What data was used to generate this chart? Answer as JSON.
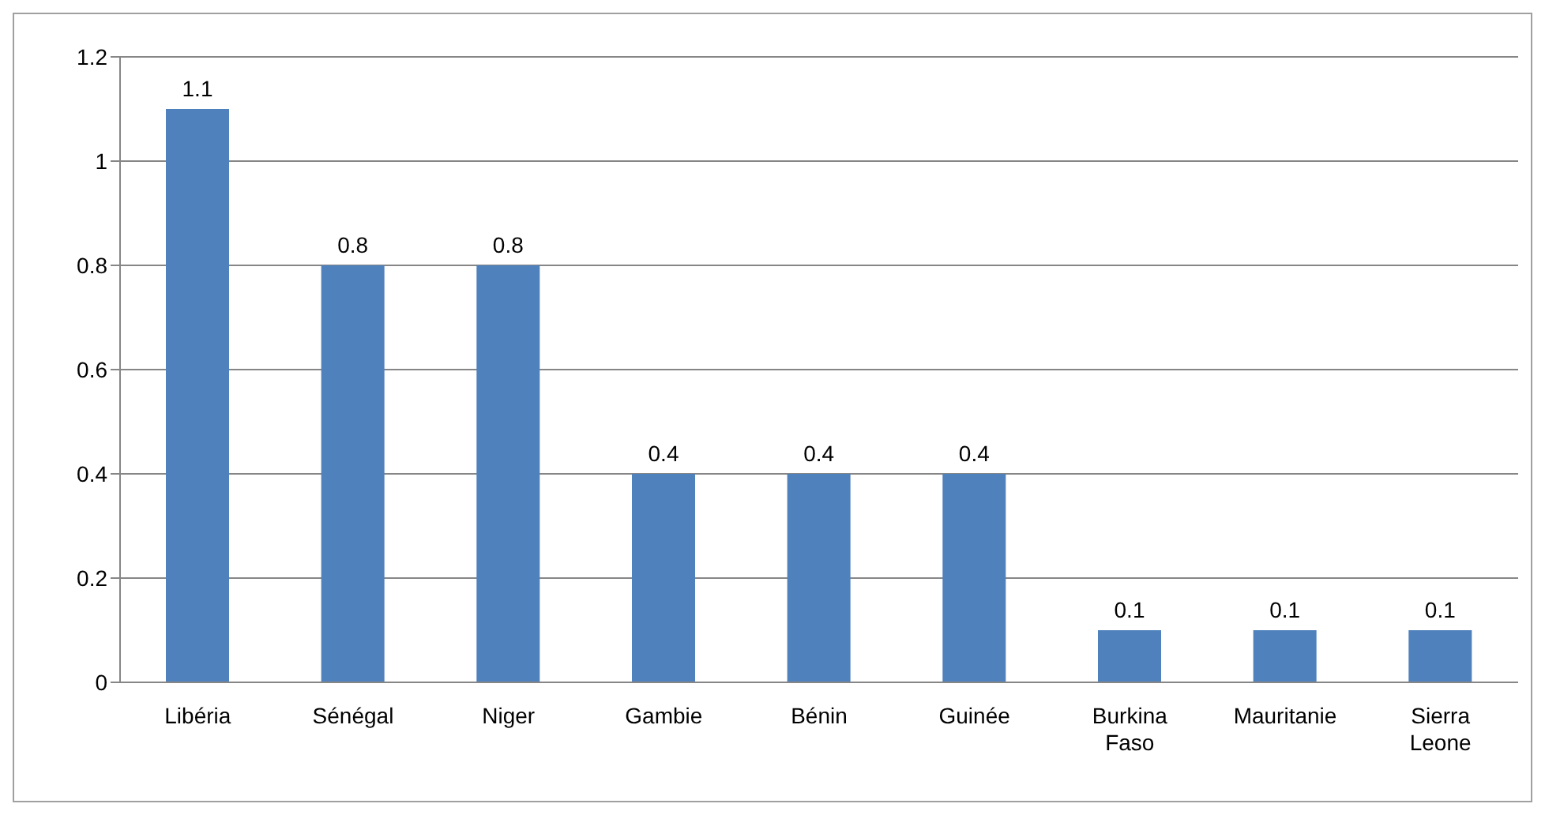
{
  "chart_data": {
    "type": "bar",
    "categories": [
      "Libéria",
      "Sénégal",
      "Niger",
      "Gambie",
      "Bénin",
      "Guinée",
      "Burkina Faso",
      "Mauritanie",
      "Sierra Leone"
    ],
    "values": [
      1.1,
      0.8,
      0.8,
      0.4,
      0.4,
      0.4,
      0.1,
      0.1,
      0.1
    ],
    "color": "#4f81bd",
    "ylim": [
      0,
      1.2
    ],
    "yticks": [
      0,
      0.2,
      0.4,
      0.6,
      0.8,
      1,
      1.2
    ],
    "grid": "y",
    "data_labels": true,
    "legend": false
  }
}
